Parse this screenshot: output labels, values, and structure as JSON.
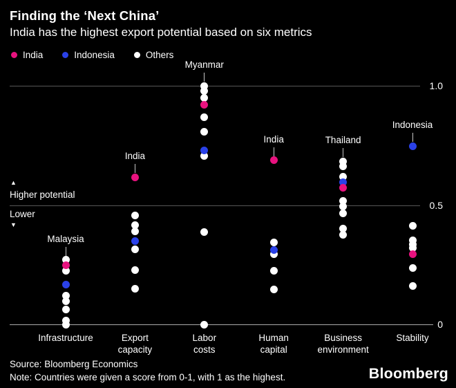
{
  "header": {
    "title": "Finding the ‘Next China’",
    "subtitle": "India has the highest export potential based on six metrics"
  },
  "legend": [
    {
      "label": "India",
      "series": "india"
    },
    {
      "label": "Indonesia",
      "series": "indonesia"
    },
    {
      "label": "Others",
      "series": "others"
    }
  ],
  "colors": {
    "india": "#e8127f",
    "indonesia": "#2a41e8",
    "others": "#ffffff",
    "background": "#000000",
    "gridline": "#575757",
    "baseline": "#ababab"
  },
  "side_labels": {
    "higher_arrow": "▲",
    "higher_label": "Higher potential",
    "lower_label": "Lower",
    "lower_arrow": "▼"
  },
  "chart_data": {
    "type": "scatter",
    "title": "Finding the ‘Next China’",
    "subtitle": "India has the highest export potential based on six metrics",
    "ylim": [
      0,
      1
    ],
    "grid": "horizontal",
    "legend_position": "top-left",
    "axis_ticks": [
      {
        "label": "1.0",
        "value": 1.0
      },
      {
        "label": "0.5",
        "value": 0.5
      },
      {
        "label": "0",
        "value": 0.0
      }
    ],
    "categories": [
      "Infrastructure",
      "Export capacity",
      "Labor costs",
      "Human capital",
      "Business environment",
      "Stability"
    ],
    "columns": [
      {
        "label": "Infrastructure",
        "annotation": "Malaysia",
        "dots": [
          {
            "series": "others",
            "value": 0.271
          },
          {
            "series": "india",
            "value": 0.248
          },
          {
            "series": "others",
            "value": 0.225
          },
          {
            "series": "indonesia",
            "value": 0.167
          },
          {
            "series": "others",
            "value": 0.12
          },
          {
            "series": "others",
            "value": 0.098
          },
          {
            "series": "others",
            "value": 0.062
          },
          {
            "series": "others",
            "value": 0.015
          },
          {
            "series": "others",
            "value": 0.0
          }
        ]
      },
      {
        "label": "Export capacity",
        "annotation": "India",
        "dots": [
          {
            "series": "india",
            "value": 0.616
          },
          {
            "series": "others",
            "value": 0.457
          },
          {
            "series": "others",
            "value": 0.416
          },
          {
            "series": "others",
            "value": 0.39
          },
          {
            "series": "indonesia",
            "value": 0.349
          },
          {
            "series": "others",
            "value": 0.315
          },
          {
            "series": "others",
            "value": 0.228
          },
          {
            "series": "others",
            "value": 0.149
          }
        ]
      },
      {
        "label": "Labor costs",
        "annotation": "Myanmar",
        "dots": [
          {
            "series": "others",
            "value": 1.0
          },
          {
            "series": "others",
            "value": 0.978
          },
          {
            "series": "others",
            "value": 0.949
          },
          {
            "series": "india",
            "value": 0.92
          },
          {
            "series": "others",
            "value": 0.868
          },
          {
            "series": "others",
            "value": 0.807
          },
          {
            "series": "indonesia",
            "value": 0.729
          },
          {
            "series": "others",
            "value": 0.706
          },
          {
            "series": "others",
            "value": 0.387
          },
          {
            "series": "others",
            "value": 0.0
          }
        ]
      },
      {
        "label": "Human capital",
        "annotation": "India",
        "dots": [
          {
            "series": "india",
            "value": 0.688
          },
          {
            "series": "others",
            "value": 0.344
          },
          {
            "series": "indonesia",
            "value": 0.312
          },
          {
            "series": "others",
            "value": 0.294
          },
          {
            "series": "others",
            "value": 0.225
          },
          {
            "series": "others",
            "value": 0.146
          }
        ]
      },
      {
        "label": "Business environment",
        "annotation": "Thailand",
        "dots": [
          {
            "series": "others",
            "value": 0.683
          },
          {
            "series": "others",
            "value": 0.662
          },
          {
            "series": "others",
            "value": 0.619
          },
          {
            "series": "indonesia",
            "value": 0.596
          },
          {
            "series": "india",
            "value": 0.572
          },
          {
            "series": "others",
            "value": 0.517
          },
          {
            "series": "others",
            "value": 0.494
          },
          {
            "series": "others",
            "value": 0.465
          },
          {
            "series": "others",
            "value": 0.401
          },
          {
            "series": "others",
            "value": 0.375
          }
        ]
      },
      {
        "label": "Stability",
        "annotation": "Indonesia",
        "dots": [
          {
            "series": "indonesia",
            "value": 0.747
          },
          {
            "series": "others",
            "value": 0.413
          },
          {
            "series": "others",
            "value": 0.352
          },
          {
            "series": "others",
            "value": 0.335
          },
          {
            "series": "others",
            "value": 0.32
          },
          {
            "series": "india",
            "value": 0.294
          },
          {
            "series": "others",
            "value": 0.236
          },
          {
            "series": "others",
            "value": 0.161
          }
        ]
      }
    ]
  },
  "footer": {
    "source": "Source: Bloomberg Economics",
    "note": "Note: Countries were given a score from 0-1, with 1 as the highest.",
    "logo": "Bloomberg"
  }
}
